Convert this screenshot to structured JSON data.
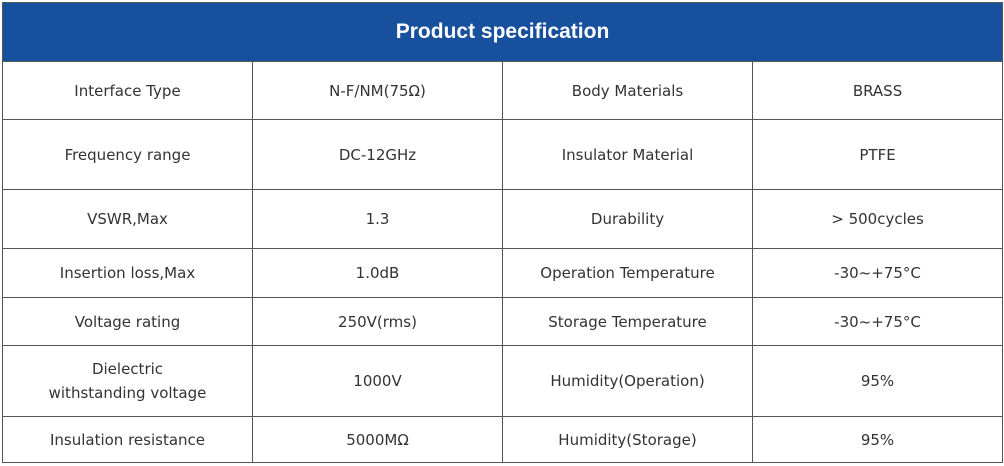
{
  "table": {
    "title": "Product specification",
    "rows": [
      [
        "Interface Type",
        "N-F/NM(75Ω)",
        "Body Materials",
        "BRASS"
      ],
      [
        "Frequency range",
        "DC-12GHz",
        "Insulator Material",
        "PTFE"
      ],
      [
        "VSWR,Max",
        "1.3",
        "Durability",
        "> 500cycles"
      ],
      [
        "Insertion loss,Max",
        "1.0dB",
        "Operation Temperature",
        "-30~+75°C"
      ],
      [
        "Voltage rating",
        "250V(rms)",
        "Storage Temperature",
        "-30~+75°C"
      ],
      [
        "Dielectric withstanding voltage",
        "1000V",
        "Humidity(Operation)",
        "95%"
      ],
      [
        "Insulation resistance",
        "5000MΩ",
        "Humidity(Storage)",
        "95%"
      ]
    ]
  }
}
